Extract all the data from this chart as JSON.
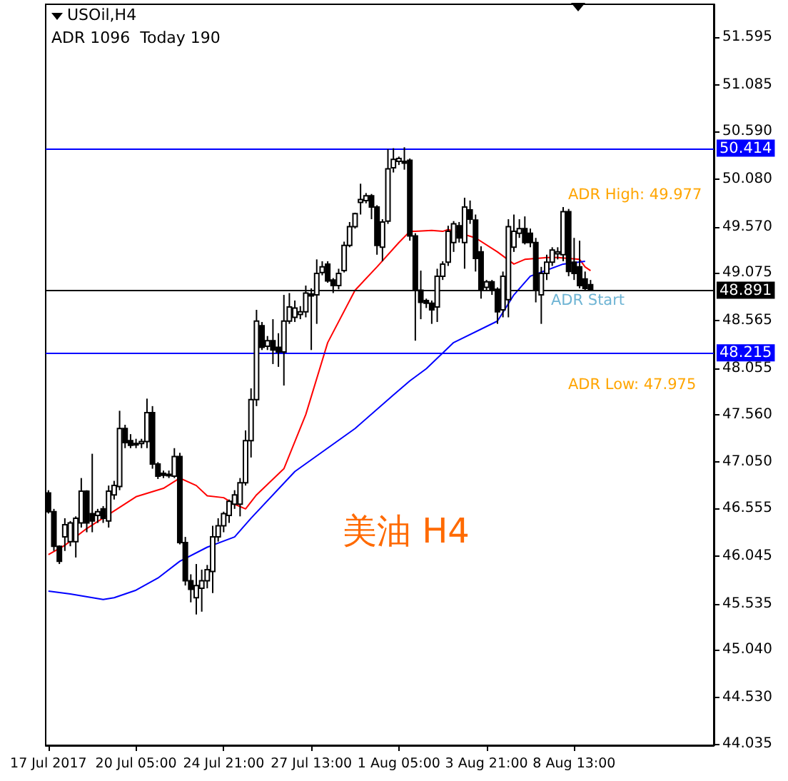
{
  "chart_data": {
    "type": "candlestick",
    "title": "USOil,H4",
    "subtitle": "ADR 1096  Today 190",
    "annotations": [
      "ADR High: 49.977",
      "ADR Start",
      "ADR Low: 47.975",
      "美油 H4"
    ],
    "categories": [
      "17 Jul 2017",
      null,
      null,
      null,
      null,
      null,
      null,
      null,
      null,
      null,
      null,
      null,
      null,
      null,
      null,
      null,
      "20 Jul 05:00",
      null,
      null,
      null,
      null,
      null,
      null,
      null,
      null,
      null,
      null,
      null,
      null,
      null,
      null,
      null,
      "24 Jul 21:00",
      null,
      null,
      null,
      null,
      null,
      null,
      null,
      null,
      null,
      null,
      null,
      null,
      null,
      null,
      null,
      "27 Jul 13:00",
      null,
      null,
      null,
      null,
      null,
      null,
      null,
      null,
      null,
      null,
      null,
      null,
      null,
      null,
      null,
      "1 Aug 05:00",
      null,
      null,
      null,
      null,
      null,
      null,
      null,
      null,
      null,
      null,
      null,
      null,
      null,
      null,
      null,
      "3 Aug 21:00",
      null,
      null,
      null,
      null,
      null,
      null,
      null,
      null,
      null,
      null,
      null,
      null,
      null,
      null,
      null,
      "8 Aug 13:00",
      null,
      null,
      null,
      null,
      null,
      null,
      null,
      null,
      null,
      null,
      null,
      null,
      null,
      null,
      null,
      null,
      null,
      null,
      null,
      null,
      null,
      null,
      null,
      null,
      null
    ],
    "ohlc": [
      [
        46.72,
        46.75,
        46.5,
        46.52
      ],
      [
        46.52,
        46.55,
        46.1,
        46.15
      ],
      [
        46.15,
        46.16,
        45.96,
        45.99
      ],
      [
        46.25,
        46.45,
        46.1,
        46.38
      ],
      [
        46.2,
        46.42,
        46.15,
        46.4
      ],
      [
        46.2,
        46.47,
        46.03,
        46.45
      ],
      [
        46.4,
        46.88,
        46.35,
        46.74
      ],
      [
        46.74,
        46.75,
        46.3,
        46.4
      ],
      [
        46.5,
        47.14,
        46.3,
        46.42
      ],
      [
        46.48,
        46.55,
        46.4,
        46.52
      ],
      [
        46.55,
        46.58,
        46.4,
        46.45
      ],
      [
        46.42,
        46.8,
        46.35,
        46.74
      ],
      [
        46.7,
        46.85,
        46.65,
        46.8
      ],
      [
        46.79,
        47.6,
        46.75,
        47.41
      ],
      [
        47.41,
        47.45,
        47.2,
        47.26
      ],
      [
        47.28,
        47.35,
        47.2,
        47.23
      ],
      [
        47.25,
        47.3,
        47.2,
        47.24
      ],
      [
        47.25,
        47.3,
        47.2,
        47.27
      ],
      [
        47.27,
        47.73,
        47.2,
        47.58
      ],
      [
        47.58,
        47.65,
        46.98,
        47.03
      ],
      [
        47.03,
        47.05,
        46.87,
        46.9
      ],
      [
        46.93,
        46.96,
        46.88,
        46.91
      ],
      [
        46.92,
        46.96,
        46.88,
        46.92
      ],
      [
        46.9,
        47.2,
        46.88,
        47.11
      ],
      [
        47.11,
        47.15,
        46.17,
        46.19
      ],
      [
        46.19,
        46.25,
        45.73,
        45.78
      ],
      [
        45.78,
        45.85,
        45.55,
        45.69
      ],
      [
        45.6,
        45.96,
        45.42,
        45.73
      ],
      [
        45.7,
        45.9,
        45.45,
        45.78
      ],
      [
        45.78,
        45.95,
        45.7,
        45.9
      ],
      [
        45.88,
        46.37,
        45.65,
        46.25
      ],
      [
        46.25,
        46.45,
        46.2,
        46.37
      ],
      [
        46.37,
        46.52,
        46.3,
        46.5
      ],
      [
        46.48,
        46.65,
        46.4,
        46.63
      ],
      [
        46.6,
        46.75,
        46.55,
        46.7
      ],
      [
        46.6,
        46.88,
        46.47,
        46.83
      ],
      [
        46.83,
        47.39,
        46.8,
        47.28
      ],
      [
        47.28,
        47.84,
        47.1,
        47.72
      ],
      [
        47.72,
        48.68,
        47.65,
        48.56
      ],
      [
        48.51,
        48.55,
        48.25,
        48.28
      ],
      [
        48.29,
        48.4,
        48.25,
        48.35
      ],
      [
        48.35,
        48.58,
        48.1,
        48.25
      ],
      [
        48.28,
        48.43,
        48.07,
        48.23
      ],
      [
        48.23,
        48.84,
        47.87,
        48.56
      ],
      [
        48.56,
        48.86,
        48.53,
        48.71
      ],
      [
        48.6,
        48.78,
        48.55,
        48.7
      ],
      [
        48.63,
        48.72,
        48.58,
        48.66
      ],
      [
        48.66,
        48.94,
        48.6,
        48.86
      ],
      [
        48.85,
        48.91,
        48.25,
        48.83
      ],
      [
        48.84,
        49.22,
        48.53,
        49.07
      ],
      [
        49.08,
        49.2,
        49.05,
        49.14
      ],
      [
        49.17,
        49.2,
        48.97,
        48.99
      ],
      [
        49.0,
        49.02,
        48.86,
        48.94
      ],
      [
        48.94,
        49.12,
        48.9,
        49.07
      ],
      [
        49.1,
        49.41,
        49.08,
        49.37
      ],
      [
        49.37,
        49.62,
        49.35,
        49.57
      ],
      [
        49.57,
        49.72,
        49.55,
        49.71
      ],
      [
        49.83,
        50.03,
        49.7,
        49.86
      ],
      [
        49.85,
        49.93,
        49.82,
        49.9
      ],
      [
        49.9,
        49.92,
        49.65,
        49.78
      ],
      [
        49.78,
        49.8,
        49.27,
        49.37
      ],
      [
        49.35,
        49.65,
        49.2,
        49.62
      ],
      [
        49.63,
        50.4,
        49.6,
        50.19
      ],
      [
        50.2,
        50.41,
        50.15,
        50.29
      ],
      [
        50.27,
        50.32,
        50.23,
        50.3
      ],
      [
        50.27,
        50.42,
        50.18,
        50.25
      ],
      [
        50.28,
        50.3,
        49.42,
        49.47
      ],
      [
        49.47,
        49.5,
        48.35,
        48.89
      ],
      [
        48.89,
        49.1,
        48.58,
        48.76
      ],
      [
        48.78,
        48.8,
        48.7,
        48.75
      ],
      [
        48.75,
        48.78,
        48.53,
        48.68
      ],
      [
        48.71,
        49.12,
        48.55,
        49.04
      ],
      [
        49.04,
        49.2,
        49.0,
        49.17
      ],
      [
        49.19,
        49.58,
        49.15,
        49.52
      ],
      [
        49.4,
        49.63,
        49.3,
        49.6
      ],
      [
        49.58,
        49.62,
        49.4,
        49.45
      ],
      [
        49.4,
        49.88,
        49.12,
        49.78
      ],
      [
        49.75,
        49.85,
        49.6,
        49.65
      ],
      [
        49.64,
        49.7,
        49.09,
        49.23
      ],
      [
        49.3,
        49.36,
        48.8,
        48.89
      ],
      [
        48.92,
        49.0,
        48.88,
        48.98
      ],
      [
        48.98,
        49.0,
        48.84,
        48.89
      ],
      [
        48.9,
        48.92,
        48.53,
        48.66
      ],
      [
        48.68,
        49.09,
        48.6,
        49.04
      ],
      [
        48.79,
        49.65,
        48.6,
        49.57
      ],
      [
        49.35,
        49.7,
        49.3,
        49.52
      ],
      [
        49.5,
        49.65,
        49.45,
        49.55
      ],
      [
        49.55,
        49.68,
        49.38,
        49.4
      ],
      [
        49.5,
        49.55,
        49.35,
        49.4
      ],
      [
        49.4,
        49.45,
        48.76,
        48.89
      ],
      [
        48.84,
        49.14,
        48.53,
        49.07
      ],
      [
        49.07,
        49.27,
        49.0,
        49.19
      ],
      [
        49.19,
        49.35,
        49.15,
        49.32
      ],
      [
        49.28,
        49.35,
        49.22,
        49.3
      ],
      [
        49.27,
        49.78,
        49.2,
        49.73
      ],
      [
        49.73,
        49.76,
        49.04,
        49.09
      ],
      [
        49.19,
        49.45,
        49.0,
        49.07
      ],
      [
        49.14,
        49.42,
        48.91,
        48.94
      ],
      [
        49.01,
        49.09,
        48.89,
        48.91
      ],
      [
        48.95,
        49.0,
        48.88,
        48.89
      ],
      null,
      null,
      null,
      null,
      null,
      null,
      null,
      null,
      null,
      null,
      null,
      null,
      null,
      null,
      null,
      null,
      null,
      null,
      null,
      null,
      null,
      null
    ],
    "series": [
      {
        "type": "line",
        "color": "#ff0000",
        "values": [
          46.06,
          null,
          null,
          46.16,
          null,
          null,
          null,
          46.34,
          null,
          null,
          null,
          46.49,
          null,
          null,
          null,
          null,
          46.68,
          null,
          null,
          null,
          null,
          46.77,
          null,
          null,
          46.88,
          null,
          null,
          46.8,
          null,
          46.69,
          null,
          null,
          46.67,
          null,
          46.6,
          null,
          46.55,
          null,
          46.7,
          null,
          null,
          null,
          null,
          46.98,
          null,
          null,
          null,
          47.56,
          null,
          null,
          null,
          48.33,
          null,
          null,
          null,
          null,
          48.89,
          null,
          null,
          null,
          49.14,
          null,
          null,
          null,
          49.4,
          null,
          49.52,
          49.52,
          null,
          null,
          49.53,
          null,
          49.52,
          49.54,
          null,
          null,
          null,
          null,
          49.45,
          null,
          null,
          null,
          49.3,
          null,
          null,
          49.17,
          null,
          49.22,
          null,
          null,
          null,
          49.24,
          null,
          49.24,
          null,
          null,
          null,
          49.22,
          49.14,
          49.1,
          null,
          null,
          null,
          null,
          null,
          null,
          null,
          null,
          null,
          null,
          null,
          null,
          null,
          null,
          null,
          null,
          null,
          null,
          null,
          null,
          null,
          null
        ]
      },
      {
        "type": "line",
        "color": "#0000ff",
        "values": [
          45.67,
          null,
          null,
          null,
          45.64,
          null,
          null,
          null,
          null,
          null,
          45.58,
          null,
          45.6,
          null,
          null,
          null,
          45.68,
          null,
          null,
          null,
          45.81,
          null,
          null,
          null,
          45.99,
          null,
          null,
          null,
          null,
          46.14,
          null,
          null,
          null,
          null,
          46.25,
          null,
          null,
          46.45,
          null,
          null,
          null,
          null,
          null,
          null,
          null,
          46.95,
          null,
          null,
          null,
          null,
          null,
          null,
          null,
          null,
          null,
          null,
          47.41,
          null,
          null,
          null,
          null,
          null,
          null,
          47.77,
          null,
          null,
          47.92,
          null,
          null,
          48.05,
          null,
          null,
          null,
          null,
          48.33,
          null,
          null,
          null,
          null,
          null,
          null,
          null,
          48.56,
          null,
          null,
          48.84,
          null,
          null,
          49.04,
          null,
          null,
          null,
          null,
          null,
          49.17,
          null,
          null,
          null,
          49.2,
          null,
          null,
          null,
          null,
          null,
          null,
          null,
          null,
          null,
          null,
          null,
          null,
          null,
          null,
          null,
          null,
          null,
          null,
          null,
          null,
          null,
          null,
          null
        ]
      }
    ],
    "ylim": [
      44.02,
      51.95
    ],
    "yticks": [
      {
        "value": 44.035,
        "label": "44.035"
      },
      {
        "value": 44.53,
        "label": "44.530"
      },
      {
        "value": 45.04,
        "label": "45.040"
      },
      {
        "value": 45.535,
        "label": "45.535"
      },
      {
        "value": 46.045,
        "label": "46.045"
      },
      {
        "value": 46.555,
        "label": "46.555"
      },
      {
        "value": 47.05,
        "label": "47.050"
      },
      {
        "value": 47.56,
        "label": "47.560"
      },
      {
        "value": 48.055,
        "label": "48.055"
      },
      {
        "value": 48.565,
        "label": "48.565"
      },
      {
        "value": 49.075,
        "label": "49.075"
      },
      {
        "value": 49.57,
        "label": "49.570"
      },
      {
        "value": 50.08,
        "label": "50.080"
      },
      {
        "value": 50.59,
        "label": "50.590"
      },
      {
        "value": 51.085,
        "label": "51.085"
      },
      {
        "value": 51.595,
        "label": "51.595"
      }
    ],
    "ref_lines": [
      {
        "axis": "y",
        "value": 50.414,
        "label": "50.414",
        "color": "#0000ff"
      },
      {
        "axis": "y",
        "value": 48.891,
        "label": "48.891",
        "color": "#000000"
      },
      {
        "axis": "y",
        "value": 48.215,
        "label": "48.215",
        "color": "#0000ff"
      }
    ]
  }
}
